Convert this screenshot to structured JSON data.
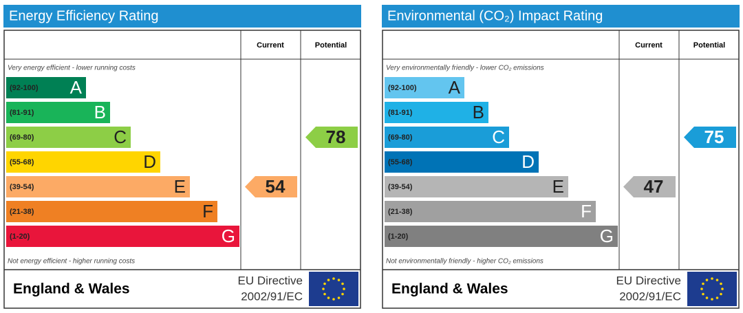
{
  "panels": [
    {
      "title": "Energy Efficiency Rating",
      "col_current": "Current",
      "col_potential": "Potential",
      "top_note": "Very energy efficient - lower running costs",
      "bottom_note": "Not energy efficient - higher running costs",
      "bands": [
        {
          "range": "(92-100)",
          "letter": "A",
          "color": "#008054",
          "text_color": "#ffffff"
        },
        {
          "range": "(81-91)",
          "letter": "B",
          "color": "#19b459",
          "text_color": "#ffffff"
        },
        {
          "range": "(69-80)",
          "letter": "C",
          "color": "#8dce46",
          "text_color": "#222222"
        },
        {
          "range": "(55-68)",
          "letter": "D",
          "color": "#ffd500",
          "text_color": "#222222"
        },
        {
          "range": "(39-54)",
          "letter": "E",
          "color": "#fcaa65",
          "text_color": "#222222"
        },
        {
          "range": "(21-38)",
          "letter": "F",
          "color": "#ef8023",
          "text_color": "#222222"
        },
        {
          "range": "(1-20)",
          "letter": "G",
          "color": "#e9153b",
          "text_color": "#ffffff"
        }
      ],
      "current": 54,
      "potential": 78,
      "footer": {
        "region": "England & Wales",
        "directive": "EU Directive",
        "directive_code": "2002/91/EC"
      }
    },
    {
      "title": "Environmental (CO₂) Impact Rating",
      "col_current": "Current",
      "col_potential": "Potential",
      "top_note": "Very environmentally friendly - lower CO₂ emissions",
      "bottom_note": "Not environmentally friendly - higher CO₂ emissions",
      "bands": [
        {
          "range": "(92-100)",
          "letter": "A",
          "color": "#63c5ef",
          "text_color": "#222222"
        },
        {
          "range": "(81-91)",
          "letter": "B",
          "color": "#1fb1e6",
          "text_color": "#222222"
        },
        {
          "range": "(69-80)",
          "letter": "C",
          "color": "#1a9dd8",
          "text_color": "#ffffff"
        },
        {
          "range": "(55-68)",
          "letter": "D",
          "color": "#0073b6",
          "text_color": "#ffffff"
        },
        {
          "range": "(39-54)",
          "letter": "E",
          "color": "#b5b5b5",
          "text_color": "#222222"
        },
        {
          "range": "(21-38)",
          "letter": "F",
          "color": "#a0a0a0",
          "text_color": "#ffffff"
        },
        {
          "range": "(1-20)",
          "letter": "G",
          "color": "#808080",
          "text_color": "#ffffff"
        }
      ],
      "current": 47,
      "potential": 75,
      "footer": {
        "region": "England & Wales",
        "directive": "EU Directive",
        "directive_code": "2002/91/EC"
      }
    }
  ]
}
